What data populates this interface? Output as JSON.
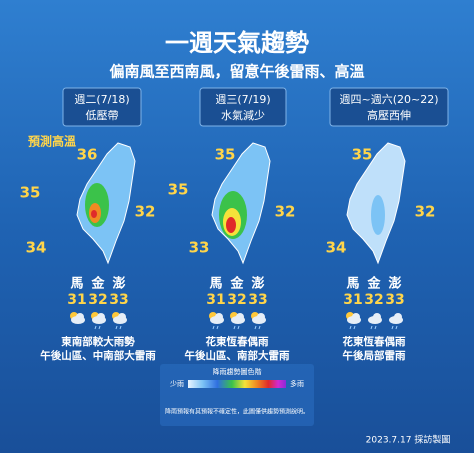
{
  "header": {
    "title": "一週天氣趨勢",
    "subtitle": "偏南風至西南風，留意午後雷雨、高溫"
  },
  "forecast_label": "預測高溫",
  "island_names": [
    "馬",
    "金",
    "澎"
  ],
  "panels": [
    {
      "day": "週二(7/18)",
      "system": "低壓帶",
      "temps": [
        36,
        35,
        32,
        34
      ],
      "islands": [
        31,
        32,
        33
      ],
      "notes": [
        "東南部較大雨勢",
        "午後山區、中南部大雷雨"
      ]
    },
    {
      "day": "週三(7/19)",
      "system": "水氣減少",
      "temps": [
        35,
        35,
        32,
        33
      ],
      "islands": [
        31,
        32,
        33
      ],
      "notes": [
        "花東恆春偶雨",
        "午後山區、南部大雷雨"
      ]
    },
    {
      "day": "週四~週六(20~22)",
      "system": "高壓西伸",
      "temps": [
        35,
        32,
        34
      ],
      "islands": [
        31,
        32,
        33
      ],
      "notes": [
        "花東恆春偶雨",
        "午後局部雷雨"
      ]
    }
  ],
  "legend": {
    "title": "降雨趨勢圖色階",
    "low": "少雨",
    "high": "多雨",
    "disclaimer": "降雨預報有其預報不確定性，此圖僅供趨勢預測說明。"
  },
  "footer": "2023.7.17 採訪製圖"
}
